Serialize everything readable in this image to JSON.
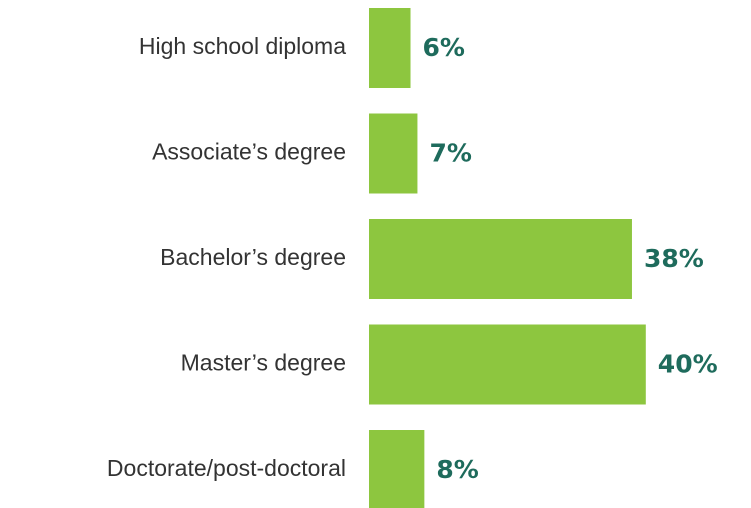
{
  "chart_data": {
    "type": "bar",
    "orientation": "horizontal",
    "categories": [
      "High school diploma",
      "Associate’s degree",
      "Bachelor’s degree",
      "Master’s degree",
      "Doctorate/post-doctoral"
    ],
    "values": [
      6,
      7,
      38,
      40,
      8
    ],
    "value_labels": [
      "6%",
      "7%",
      "38%",
      "40%",
      "8%"
    ],
    "color": "#8dc63f"
  }
}
